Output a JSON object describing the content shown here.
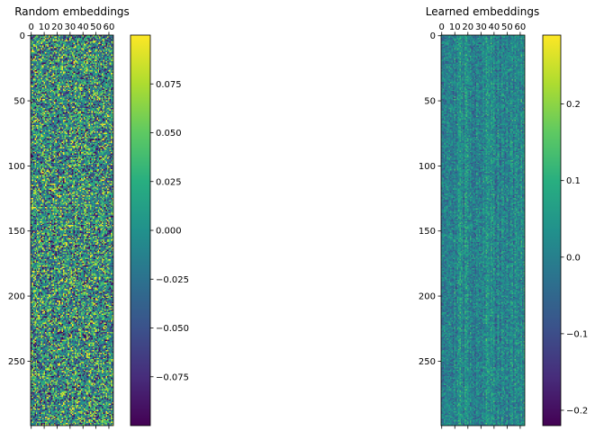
{
  "chart_data": [
    {
      "type": "heatmap",
      "title": "Random embeddings",
      "rows": 300,
      "cols": 64,
      "xticks": [
        0,
        10,
        20,
        30,
        40,
        50,
        60
      ],
      "yticks": [
        0,
        50,
        100,
        150,
        200,
        250
      ],
      "xtick_position": "top",
      "value_range": [
        -0.1,
        0.1
      ],
      "colormap": "viridis",
      "colorbar": {
        "ticks": [
          0.075,
          0.05,
          0.025,
          0.0,
          -0.025,
          -0.05,
          -0.075
        ],
        "labels": [
          "0.075",
          "0.050",
          "0.025",
          "0.000",
          "−0.025",
          "−0.050",
          "−0.075"
        ]
      }
    },
    {
      "type": "heatmap",
      "title": "Learned embeddings",
      "rows": 300,
      "cols": 64,
      "xticks": [
        0,
        10,
        20,
        30,
        40,
        50,
        60
      ],
      "yticks": [
        0,
        50,
        100,
        150,
        200,
        250
      ],
      "xtick_position": "top",
      "value_range": [
        -0.22,
        0.29
      ],
      "colormap": "viridis",
      "colorbar": {
        "ticks": [
          0.2,
          0.1,
          0.0,
          -0.1,
          -0.2
        ],
        "labels": [
          "0.2",
          "0.1",
          "0.0",
          "−0.1",
          "−0.2"
        ]
      }
    }
  ]
}
